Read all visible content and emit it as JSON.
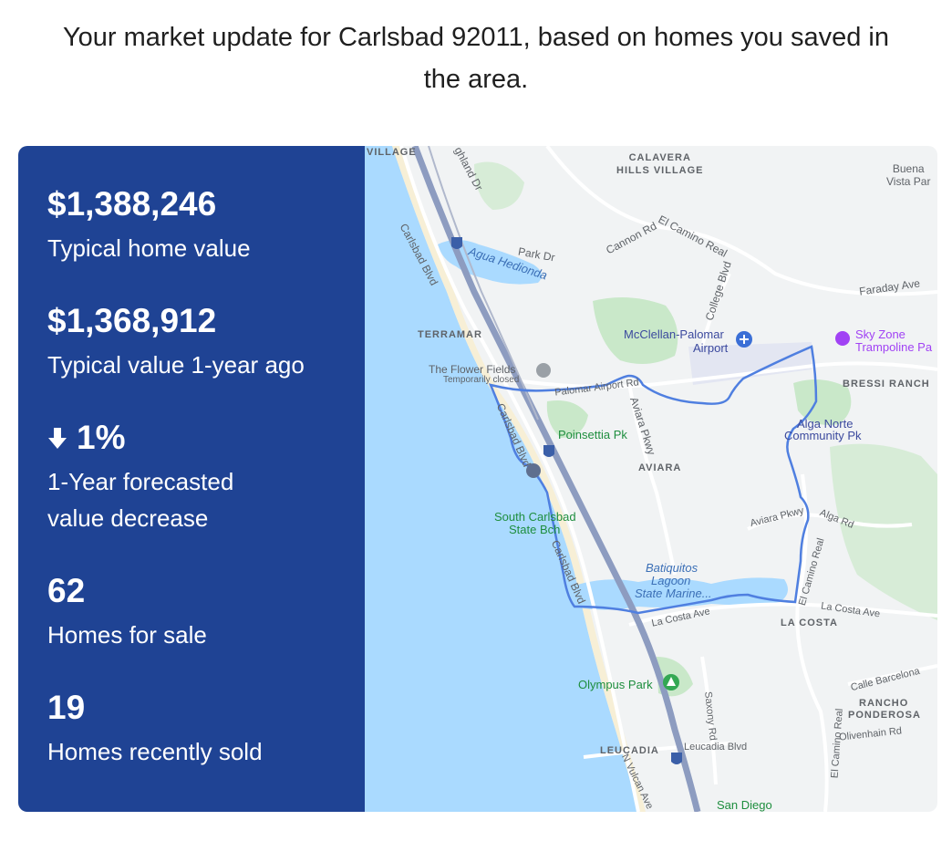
{
  "intro": {
    "line1": "Your market update for Carlsbad 92011, based on homes you saved in",
    "line2": "the area."
  },
  "stats": {
    "typical_value": "$1,388,246",
    "typical_value_label": "Typical home value",
    "year_ago_value": "$1,368,912",
    "year_ago_label": "Typical value 1-year ago",
    "forecast_value": "1%",
    "forecast_icon": "arrow-down-icon",
    "forecast_label_line1": "1-Year forecasted",
    "forecast_label_line2": "value decrease",
    "for_sale_count": "62",
    "for_sale_label": "Homes for sale",
    "sold_count": "19",
    "sold_label": "Homes recently sold"
  },
  "colors": {
    "panel_bg": "#1f4394",
    "ocean": "#aadaff",
    "boundary": "#4f7fe0",
    "park": "#c9e8c9"
  },
  "map": {
    "labels": {
      "village": "VILLAGE",
      "calavera": "CALAVERA\nHILLS VILLAGE",
      "buena_vista": "Buena\nVista Par",
      "highland": "ghland Dr",
      "carlsbad_blvd_n": "Carlsbad Blvd",
      "agua_hedionda": "Agua Hedionda",
      "park_dr": "Park Dr",
      "cannon_rd": "Cannon Rd",
      "el_camino_real_n": "El Camino Real",
      "college_blvd": "College Blvd",
      "faraday": "Faraday Ave",
      "terramar": "TERRAMAR",
      "mcclellan": "McClellan-Palomar",
      "airport": "Airport",
      "sky_zone": "Sky Zone",
      "trampoline": "Trampoline Pa",
      "flower_fields": "The Flower Fields",
      "temp_closed": "Temporarily closed",
      "palomar_airport_rd": "Palomar Airport Rd",
      "bressi": "BRESSI RANCH",
      "aviara_pkwy_v": "Aviara Pkwy",
      "alga_norte": "Alga Norte",
      "community_pk": "Community Pk",
      "poinsettia": "Poinsettia Pk",
      "carlsbad_blvd_mid": "Carlsbad Blvd",
      "aviara": "AVIARA",
      "south_carlsbad": "South Carlsbad",
      "state_bch": "State Bch",
      "aviara_pkwy_h": "Aviara Pkwy",
      "alga_rd": "Alga Rd",
      "carlsbad_blvd_s": "Carlsbad Blvd",
      "batiquitos": "Batiquitos",
      "lagoon": "Lagoon",
      "state_marine": "State Marine...",
      "el_camino_real_s": "El Camino Real",
      "la_costa_ave_w": "La Costa Ave",
      "la_costa_ave_e": "La Costa Ave",
      "la_costa": "LA COSTA",
      "olympus": "Olympus Park",
      "calle_barcelona": "Calle Barcelona",
      "rancho": "RANCHO",
      "ponderosa": "PONDEROSA",
      "saxony": "Saxony Rd",
      "olivenhain": "Olivenhain Rd",
      "leucadia": "LEUCADIA",
      "leucadia_blvd": "Leucadia Blvd",
      "n_vulcan": "N Vulcan Ave",
      "el_camino_real_se": "El Camino Real",
      "san_diego": "San Diego",
      "interstate": "5"
    }
  }
}
